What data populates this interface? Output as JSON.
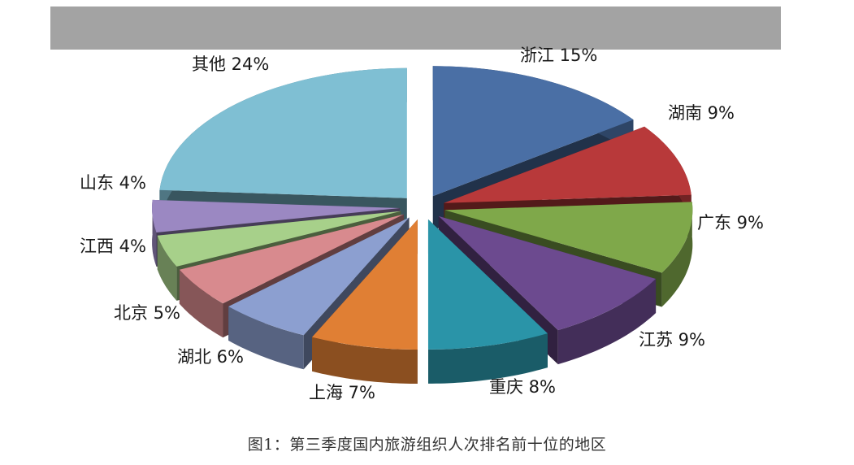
{
  "chart_data": {
    "type": "pie",
    "style": "3d-exploded",
    "slices": [
      {
        "label": "浙江",
        "value": 15,
        "display": "浙江 15%",
        "color": "#4a6fa5"
      },
      {
        "label": "湖南",
        "value": 9,
        "display": "湖南 9%",
        "color": "#b8393a"
      },
      {
        "label": "广东",
        "value": 9,
        "display": "广东 9%",
        "color": "#7fa84a"
      },
      {
        "label": "江苏",
        "value": 9,
        "display": "江苏 9%",
        "color": "#6c4a8f"
      },
      {
        "label": "重庆",
        "value": 8,
        "display": "重庆 8%",
        "color": "#2a94a8"
      },
      {
        "label": "上海",
        "value": 7,
        "display": "上海 7%",
        "color": "#e07f34"
      },
      {
        "label": "湖北",
        "value": 6,
        "display": "湖北 6%",
        "color": "#8c9fd0"
      },
      {
        "label": "北京",
        "value": 5,
        "display": "北京 5%",
        "color": "#d88a8e"
      },
      {
        "label": "江西",
        "value": 4,
        "display": "江西 4%",
        "color": "#a7d08a"
      },
      {
        "label": "山东",
        "value": 4,
        "display": "山东 4%",
        "color": "#9b88c2"
      },
      {
        "label": "其他",
        "value": 24,
        "display": "其他 24%",
        "color": "#7fbfd3"
      }
    ],
    "legend": "none",
    "caption": "图1：第三季度国内旅游组织人次排名前十位的地区"
  }
}
